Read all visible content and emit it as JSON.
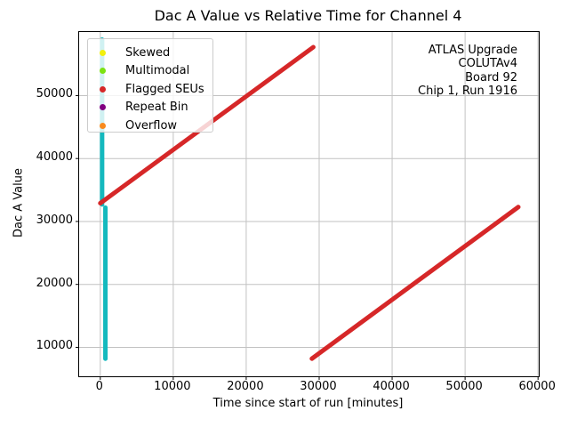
{
  "chart_data": {
    "type": "scatter",
    "title": "Dac A Value vs Relative Time for Channel 4",
    "xlabel": "Time since start of run [minutes]",
    "ylabel": "Dac A Value",
    "xlim": [
      -2900,
      60100
    ],
    "ylim": [
      5400,
      60100
    ],
    "grid": true,
    "grid_color": "#c2c2c2",
    "axis_color": "#000000",
    "xticks": [
      {
        "v": 0,
        "label": "0"
      },
      {
        "v": 10000,
        "label": "10000"
      },
      {
        "v": 20000,
        "label": "20000"
      },
      {
        "v": 30000,
        "label": "30000"
      },
      {
        "v": 40000,
        "label": "40000"
      },
      {
        "v": 50000,
        "label": "50000"
      },
      {
        "v": 60000,
        "label": "60000"
      }
    ],
    "yticks": [
      {
        "v": 10000,
        "label": "10000"
      },
      {
        "v": 20000,
        "label": "20000"
      },
      {
        "v": 30000,
        "label": "30000"
      },
      {
        "v": 40000,
        "label": "40000"
      },
      {
        "v": 50000,
        "label": "50000"
      }
    ],
    "legend": {
      "position": "upper-left",
      "entries": [
        {
          "label": "Skewed",
          "color": "#f2f00e"
        },
        {
          "label": "Multimodal",
          "color": "#7ce312"
        },
        {
          "label": "Flagged SEUs",
          "color": "#d62728"
        },
        {
          "label": "Repeat Bin",
          "color": "#800080"
        },
        {
          "label": "Overflow",
          "color": "#f98a1d"
        }
      ]
    },
    "annotation": {
      "align": "right",
      "lines": [
        "ATLAS Upgrade",
        "COLUTAv4",
        "Board 92",
        "Chip 1, Run 1916"
      ]
    },
    "series": [
      {
        "name": "fast-ramp-segment-upper",
        "color": "#14b9be",
        "width": 5,
        "points": [
          [
            250,
            32700
          ],
          [
            250,
            58900
          ]
        ]
      },
      {
        "name": "fast-ramp-segment-lower",
        "color": "#14b9be",
        "width": 5,
        "points": [
          [
            700,
            8200
          ],
          [
            700,
            32200
          ]
        ]
      },
      {
        "name": "flagged-seus-ramp-1",
        "color": "#d62728",
        "width": 5,
        "points": [
          [
            0,
            32900
          ],
          [
            29200,
            57700
          ]
        ]
      },
      {
        "name": "flagged-seus-ramp-2",
        "color": "#d62728",
        "width": 5,
        "points": [
          [
            29000,
            8200
          ],
          [
            57300,
            32300
          ]
        ]
      }
    ]
  }
}
